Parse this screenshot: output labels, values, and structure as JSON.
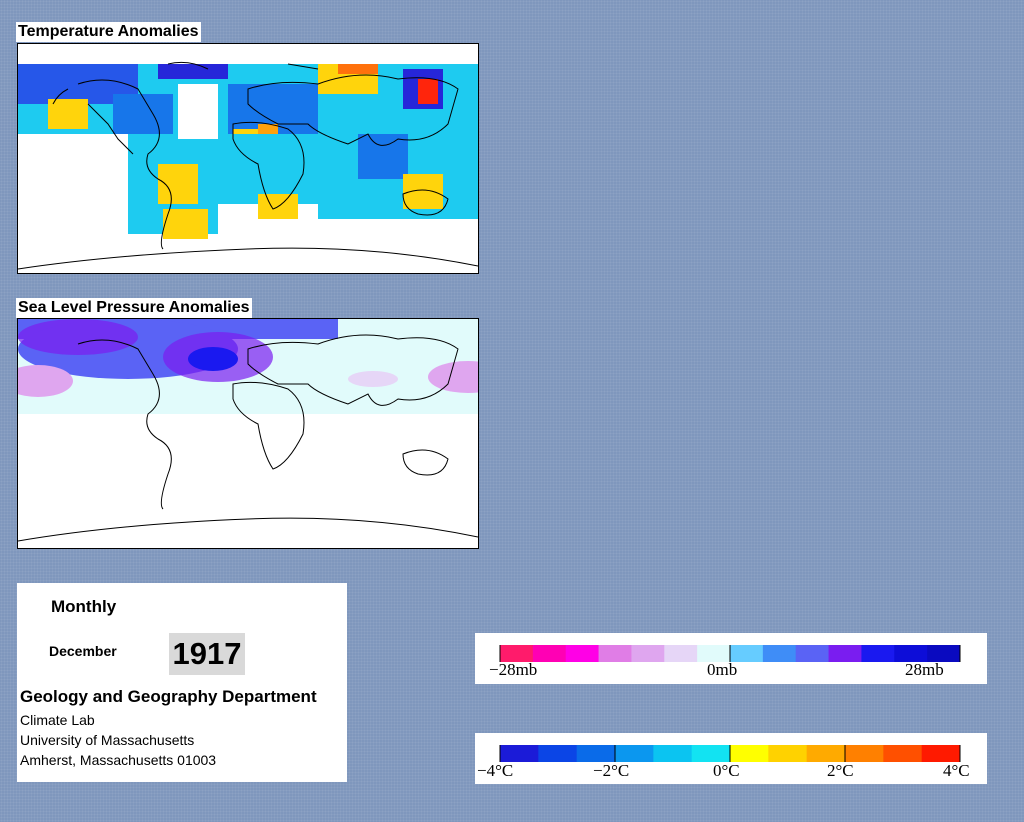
{
  "temperature_panel": {
    "title": "Temperature Anomalies"
  },
  "pressure_panel": {
    "title": "Sea Level Pressure Anomalies"
  },
  "info": {
    "period": "Monthly",
    "month": "December",
    "year": "1917",
    "department": "Geology and Geography Department",
    "lab": "Climate Lab",
    "university": "University of Massachusetts",
    "address": "Amherst, Massachusetts 01003"
  },
  "pressure_legend": {
    "labels": [
      "−28mb",
      "0mb",
      "28mb"
    ],
    "colors": [
      "#ff1b6b",
      "#ff00b4",
      "#ff00e6",
      "#e07de6",
      "#dfa6ef",
      "#e6d6f7",
      "#e1fbfb",
      "#66ccff",
      "#3f8df7",
      "#5a63f5",
      "#7a1df0",
      "#1a19f0",
      "#0d0dd8",
      "#0a0ac0"
    ]
  },
  "temperature_legend": {
    "labels": [
      "−4°C",
      "−2°C",
      "0°C",
      "2°C",
      "4°C"
    ],
    "colors": [
      "#1b1bd8",
      "#0b45e6",
      "#0a6be9",
      "#0b97ef",
      "#0bc4f1",
      "#12e3f2",
      "#ffff00",
      "#ffd200",
      "#ffaa00",
      "#ff8000",
      "#ff5000",
      "#ff1a00"
    ]
  }
}
